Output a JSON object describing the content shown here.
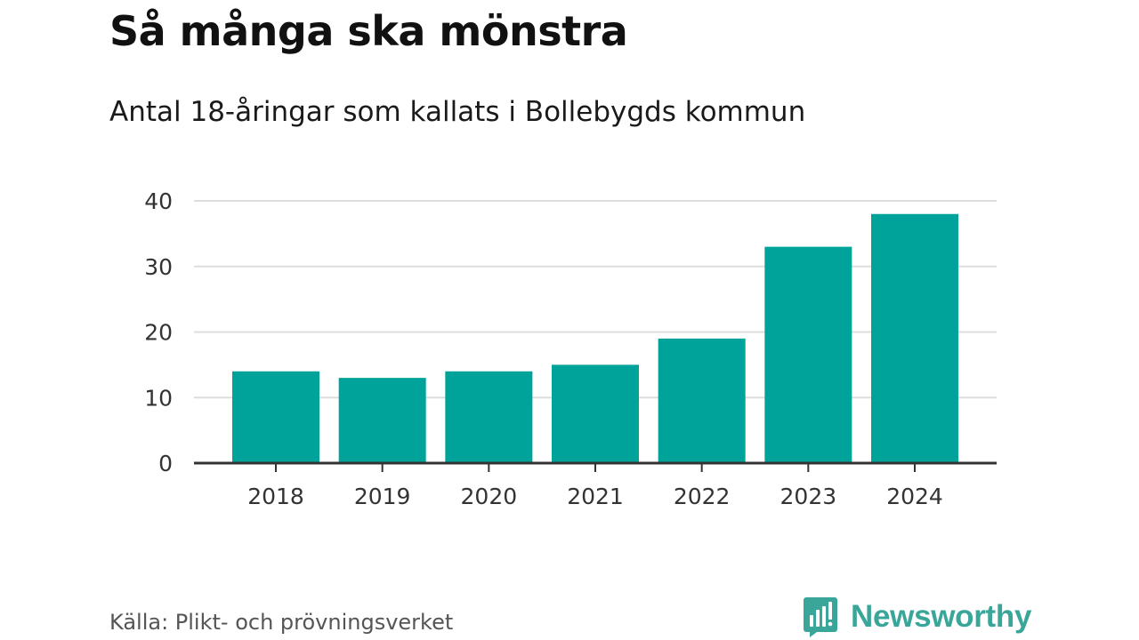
{
  "header": {
    "title": "Så många ska mönstra",
    "subtitle": "Antal 18-åringar som kallats i Bollebygds kommun"
  },
  "footer": {
    "source": "Källa: Plikt- och prövningsverket",
    "brand": "Newsworthy"
  },
  "colors": {
    "bar": "#00a39a",
    "grid": "#dddddd",
    "axis": "#333333",
    "brand": "#3aa69a"
  },
  "chart_data": {
    "type": "bar",
    "title": "Så många ska mönstra",
    "subtitle": "Antal 18-åringar som kallats i Bollebygds kommun",
    "categories": [
      "2018",
      "2019",
      "2020",
      "2021",
      "2022",
      "2023",
      "2024"
    ],
    "values": [
      14,
      13,
      14,
      15,
      19,
      33,
      38
    ],
    "xlabel": "",
    "ylabel": "",
    "ylim": [
      0,
      40
    ],
    "yticks": [
      0,
      10,
      20,
      30,
      40
    ],
    "grid": true,
    "legend": "none"
  }
}
